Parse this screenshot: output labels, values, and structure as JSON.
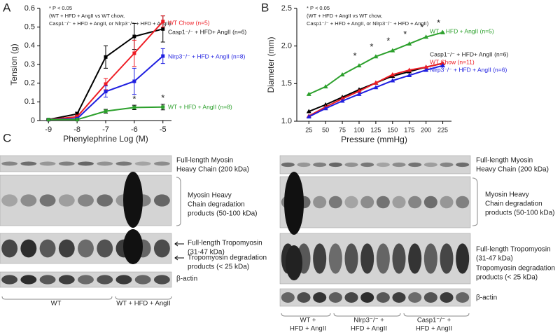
{
  "panels": [
    "A",
    "B",
    "C"
  ],
  "chart_data": [
    {
      "type": "line",
      "y_label": "Tension (g)",
      "x_label": "Phenylephrine Log (M)",
      "annotation": [
        "* P < 0.05",
        "(WT + HFD + AngII vs WT chow,",
        "Casp1⁻/⁻ + HFD + AngII, or Nlrp3⁻/⁻ + HFD + AngII)"
      ],
      "x": [
        -9,
        -8,
        -7,
        -6,
        -5
      ],
      "xlim": [
        -9.3,
        -4.7
      ],
      "xticks": [
        -9,
        -8,
        -7,
        -6,
        -5
      ],
      "ylim": [
        0,
        0.6
      ],
      "yticks": [
        0,
        0.1,
        0.2,
        0.3,
        0.4,
        0.5,
        0.6
      ],
      "significance_symbol": "*",
      "significant_x": [
        -6,
        -5
      ],
      "series": [
        {
          "name": "Casp1⁻/⁻ + HFD+ AngII (n=6)",
          "color": "#000000",
          "values": [
            0.005,
            0.035,
            0.34,
            0.45,
            0.49
          ],
          "errors": [
            0.005,
            0.01,
            0.06,
            0.07,
            0.07
          ]
        },
        {
          "name": "WT Chow (n=5)",
          "color": "#ee1c24",
          "values": [
            0.005,
            0.02,
            0.195,
            0.36,
            0.53
          ],
          "errors": [
            0.003,
            0.01,
            0.03,
            0.07,
            0.03
          ]
        },
        {
          "name": "Nlrp3⁻/⁻ + HFD + AngII (n=8)",
          "color": "#1f1fe0",
          "values": [
            0.005,
            0.01,
            0.155,
            0.21,
            0.345
          ],
          "errors": [
            0.003,
            0.005,
            0.03,
            0.07,
            0.04
          ]
        },
        {
          "name": "WT + HFD + AngII (n=8)",
          "color": "#2ca02c",
          "values": [
            0.005,
            0.005,
            0.05,
            0.07,
            0.072
          ],
          "errors": [
            0.002,
            0.003,
            0.01,
            0.012,
            0.015
          ]
        }
      ]
    },
    {
      "type": "line",
      "y_label": "Diameter (mm)",
      "x_label": "Pressure (mmHg)",
      "annotation": [
        "* P < 0.05",
        "(WT + HFD + AngII vs WT chow,",
        "Casp1⁻/⁻ + HFD + AngII, or Nlrp3⁻/⁻ + HFD + AngII)"
      ],
      "x": [
        25,
        50,
        75,
        100,
        125,
        150,
        175,
        200,
        225
      ],
      "xlim": [
        7,
        238
      ],
      "xticks": [
        25,
        50,
        75,
        100,
        125,
        150,
        175,
        200,
        225
      ],
      "ylim": [
        1,
        2.5
      ],
      "yticks": [
        {
          "value": 1,
          "label": "1.0"
        },
        {
          "value": 1.5,
          "label": "1.5"
        },
        {
          "value": 2,
          "label": "2.0"
        },
        {
          "value": 2.5,
          "label": "2.5"
        }
      ],
      "significance_symbol": "*",
      "significant_x": [
        100,
        125,
        150,
        175,
        200,
        225
      ],
      "series": [
        {
          "name": "WT + HFD + AngII (n=5)",
          "color": "#2ca02c",
          "values": [
            1.36,
            1.46,
            1.62,
            1.74,
            1.86,
            1.94,
            2.03,
            2.12,
            2.18
          ]
        },
        {
          "name": "Casp1⁻/⁻ + HFD+ AngII (n=6)",
          "color": "#000000",
          "values": [
            1.13,
            1.22,
            1.32,
            1.42,
            1.51,
            1.6,
            1.66,
            1.72,
            1.77
          ]
        },
        {
          "name": "WT Chow (n=11)",
          "color": "#ee1c24",
          "values": [
            1.07,
            1.19,
            1.3,
            1.4,
            1.51,
            1.62,
            1.68,
            1.72,
            1.77
          ]
        },
        {
          "name": "Nlrp3⁻/⁻ + HFD + AngII (n=6)",
          "color": "#1f1fe0",
          "values": [
            1.06,
            1.17,
            1.27,
            1.36,
            1.45,
            1.54,
            1.61,
            1.68,
            1.74
          ]
        }
      ]
    }
  ],
  "blots": {
    "left": {
      "labels": [
        [
          "Full-length Myosin",
          "Heavy Chain (200 kDa)"
        ],
        [
          "Myosin Heavy",
          "Chain degradation",
          "products (50-100 kDa)"
        ],
        [
          "Full-length Tropomyosin",
          "(31-47 kDa)"
        ],
        [
          "Tropomyosin degradation",
          "products (< 25 kDa)"
        ],
        [
          "β-actin"
        ]
      ],
      "groups": [
        [
          "WT"
        ],
        [
          "WT + HFD + AngII"
        ]
      ]
    },
    "right": {
      "labels": [
        [
          "Full-length Myosin",
          "Heavy Chain (200 kDa)"
        ],
        [
          "Myosin Heavy",
          "Chain degradation",
          "products (50-100 kDa)"
        ],
        [
          "Full-length Tropomyosin",
          "(31-47 kDa)"
        ],
        [
          "Tropomyosin degradation",
          "products (< 25 kDa)"
        ],
        [
          "β-actin"
        ]
      ],
      "groups": [
        [
          "WT +",
          "HFD + AngII"
        ],
        [
          "Nlrp3⁻/⁻ +",
          "HFD + AngII"
        ],
        [
          "Casp1⁻/⁻ +",
          "HFD + AngII"
        ]
      ]
    }
  }
}
